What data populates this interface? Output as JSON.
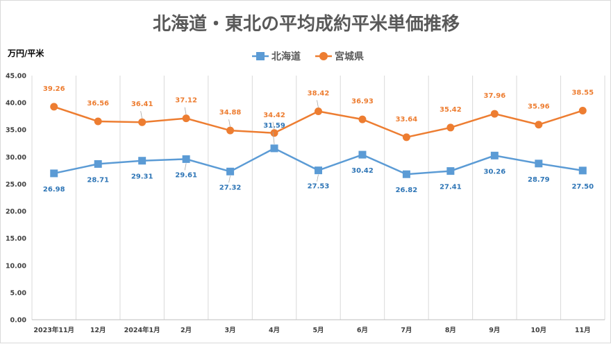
{
  "chart_data": {
    "type": "line",
    "title": "北海道・東北の平均成約平米単価推移",
    "ylabel": "万円/平米",
    "xlabel": "",
    "categories": [
      "2023年11月",
      "12月",
      "2024年1月",
      "2月",
      "3月",
      "4月",
      "5月",
      "6月",
      "7月",
      "8月",
      "9月",
      "10月",
      "11月"
    ],
    "ylim": [
      0,
      45
    ],
    "yticks": [
      "0.00",
      "5.00",
      "10.00",
      "15.00",
      "20.00",
      "25.00",
      "30.00",
      "35.00",
      "40.00",
      "45.00"
    ],
    "grid": "vertical",
    "legend": "top-center",
    "series": [
      {
        "name": "北海道",
        "color": "#5b9bd5",
        "label_color": "#2e75b6",
        "marker": "square",
        "values": [
          26.98,
          28.71,
          29.31,
          29.61,
          27.32,
          31.59,
          27.53,
          30.42,
          26.82,
          27.41,
          30.26,
          28.79,
          27.5
        ],
        "labels": [
          "26.98",
          "28.71",
          "29.31",
          "29.61",
          "27.32",
          "31.59",
          "27.53",
          "30.42",
          "26.82",
          "27.41",
          "30.26",
          "28.79",
          "27.50"
        ]
      },
      {
        "name": "宮城県",
        "color": "#ed7d31",
        "label_color": "#ed7d31",
        "marker": "circle",
        "values": [
          39.26,
          36.56,
          36.41,
          37.12,
          34.88,
          34.42,
          38.42,
          36.93,
          33.64,
          35.42,
          37.96,
          35.96,
          38.55
        ],
        "labels": [
          "39.26",
          "36.56",
          "36.41",
          "37.12",
          "34.88",
          "34.42",
          "38.42",
          "36.93",
          "33.64",
          "35.42",
          "37.96",
          "35.96",
          "38.55"
        ]
      }
    ]
  }
}
